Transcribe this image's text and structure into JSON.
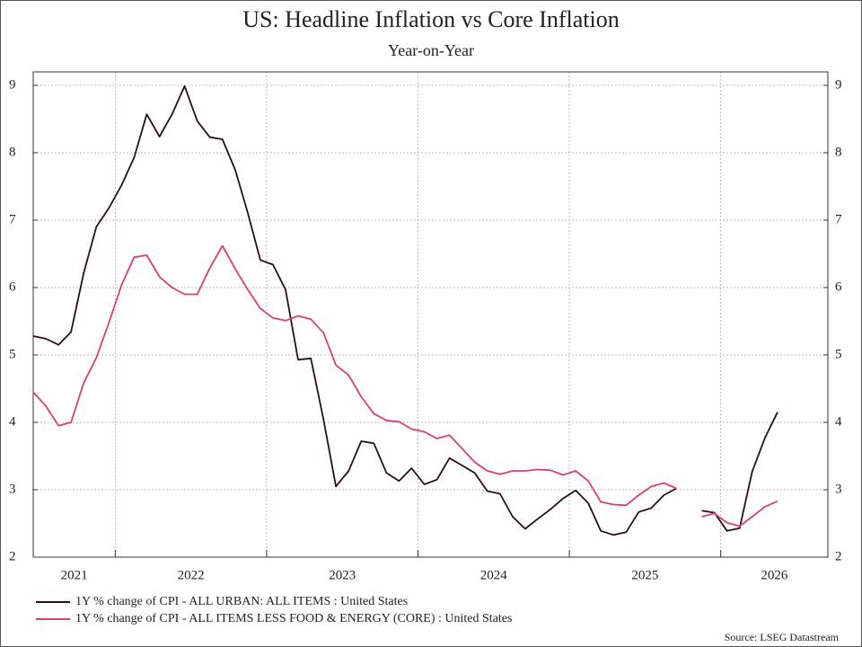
{
  "chart_data": {
    "type": "line",
    "title": "US: Headline Inflation vs Core Inflation",
    "subtitle": "Year-on-Year",
    "source": "Source: LSEG Datastream",
    "x": [
      2021.458,
      2021.542,
      2021.625,
      2021.708,
      2021.792,
      2021.875,
      2021.958,
      2022.042,
      2022.125,
      2022.208,
      2022.292,
      2022.375,
      2022.458,
      2022.542,
      2022.625,
      2022.708,
      2022.792,
      2022.875,
      2022.958,
      2023.042,
      2023.125,
      2023.208,
      2023.292,
      2023.375,
      2023.458,
      2023.542,
      2023.625,
      2023.708,
      2023.792,
      2023.875,
      2023.958,
      2024.042,
      2024.125,
      2024.208,
      2024.292,
      2024.375,
      2024.458,
      2024.542,
      2024.625,
      2024.708,
      2024.792,
      2024.875,
      2024.958,
      2025.042,
      2025.125,
      2025.208,
      2025.292,
      2025.375,
      2025.458,
      2025.542,
      2025.625,
      2025.708,
      2025.792,
      2025.875,
      2025.958,
      2026.042,
      2026.125,
      2026.208,
      2026.292,
      2026.375
    ],
    "series": [
      {
        "name": "1Y % change of CPI - ALL URBAN: ALL ITEMS : United States",
        "color": "#2b0d1f",
        "values": [
          5.28,
          5.24,
          5.15,
          5.34,
          6.22,
          6.9,
          7.18,
          7.52,
          7.93,
          8.57,
          8.24,
          8.57,
          8.99,
          8.47,
          8.23,
          8.2,
          7.75,
          7.11,
          6.41,
          6.34,
          5.97,
          4.93,
          4.95,
          4.05,
          3.05,
          3.28,
          3.72,
          3.69,
          3.25,
          3.13,
          3.32,
          3.08,
          3.15,
          3.47,
          3.36,
          3.25,
          2.98,
          2.94,
          2.6,
          2.42,
          2.57,
          2.71,
          2.87,
          2.99,
          2.8,
          2.39,
          2.33,
          2.37,
          2.67,
          2.73,
          2.92,
          3.02,
          null,
          2.69,
          2.66,
          2.39,
          2.43,
          3.27,
          3.77,
          4.15
        ]
      },
      {
        "name": "1Y % change of CPI - ALL ITEMS LESS FOOD & ENERGY (CORE) : United States",
        "color": "#d6426a",
        "values": [
          4.45,
          4.24,
          3.95,
          4.0,
          4.59,
          4.96,
          5.48,
          6.04,
          6.45,
          6.48,
          6.16,
          6.0,
          5.9,
          5.9,
          6.29,
          6.62,
          6.28,
          5.97,
          5.69,
          5.55,
          5.51,
          5.58,
          5.53,
          5.33,
          4.85,
          4.7,
          4.38,
          4.13,
          4.03,
          4.01,
          3.9,
          3.86,
          3.76,
          3.81,
          3.61,
          3.41,
          3.28,
          3.23,
          3.28,
          3.28,
          3.3,
          3.29,
          3.22,
          3.28,
          3.13,
          2.82,
          2.78,
          2.77,
          2.92,
          3.05,
          3.1,
          3.02,
          null,
          2.6,
          2.65,
          2.51,
          2.46,
          2.6,
          2.75,
          2.83
        ]
      }
    ],
    "xlim": [
      2021.458,
      2026.708
    ],
    "xticks": [
      2021,
      2022,
      2023,
      2024,
      2025,
      2026
    ],
    "ylim": [
      2,
      9.2
    ],
    "yticks": [
      2,
      3,
      4,
      5,
      6,
      7,
      8,
      9
    ],
    "y2lim": [
      2,
      9.2
    ],
    "y2ticks": [
      2,
      3,
      4,
      5,
      6,
      7,
      8,
      9
    ],
    "grid": true
  }
}
